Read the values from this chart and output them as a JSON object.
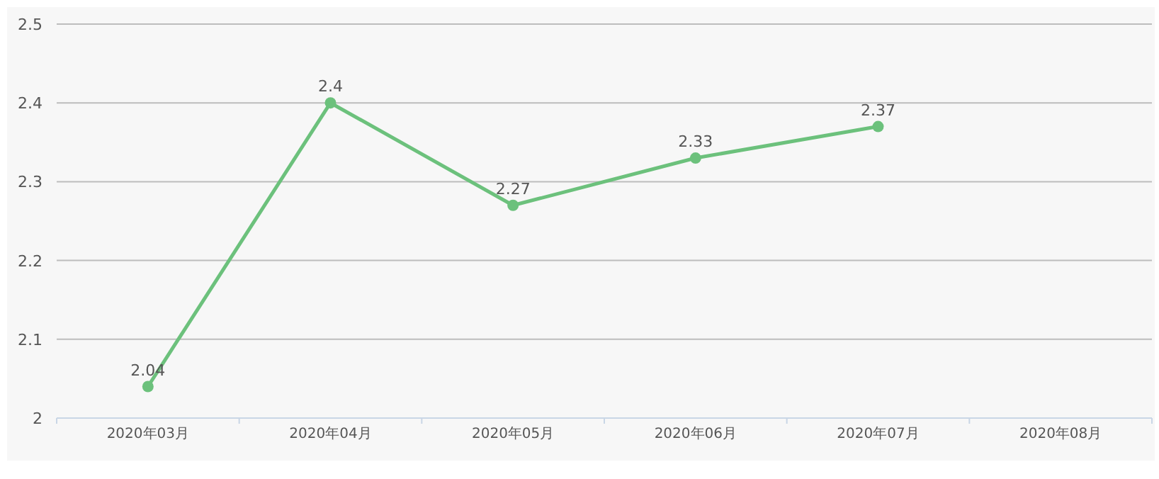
{
  "chart_data": {
    "type": "line",
    "categories": [
      "2020年03月",
      "2020年04月",
      "2020年05月",
      "2020年06月",
      "2020年07月",
      "2020年08月"
    ],
    "series": [
      {
        "color": "#6cc17c",
        "values": [
          2.04,
          2.4,
          2.27,
          2.33,
          2.37,
          null
        ]
      }
    ],
    "ylim": [
      2,
      2.5
    ],
    "yticks": [
      2,
      2.1,
      2.2,
      2.3,
      2.4,
      2.5
    ],
    "grid": "y",
    "marker": "circle",
    "line_style": "solid",
    "data_labels": true
  }
}
